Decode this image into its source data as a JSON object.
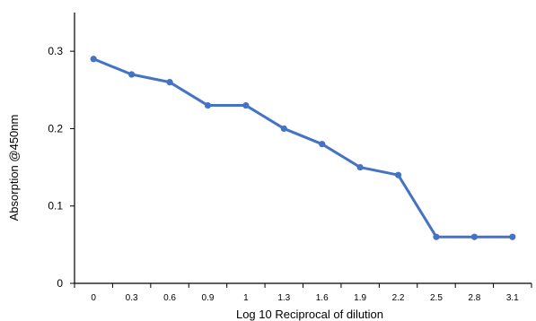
{
  "chart_data": {
    "type": "line",
    "title": "",
    "xlabel": "Log 10 Reciprocal of dilution",
    "ylabel": "Absorption @450nm",
    "categories": [
      "0",
      "0.3",
      "0.6",
      "0.9",
      "1",
      "1.3",
      "1.6",
      "1.9",
      "2.2",
      "2.5",
      "2.8",
      "3.1"
    ],
    "series": [
      {
        "values": [
          0.29,
          0.27,
          0.26,
          0.23,
          0.23,
          0.2,
          0.18,
          0.15,
          0.14,
          0.06,
          0.06,
          0.06
        ]
      }
    ],
    "ylim": [
      0,
      0.35
    ],
    "yticks": [
      "0",
      "0.1",
      "0.2",
      "0.3"
    ],
    "grid": false,
    "legend": "none",
    "line_color": "#4472c4"
  }
}
